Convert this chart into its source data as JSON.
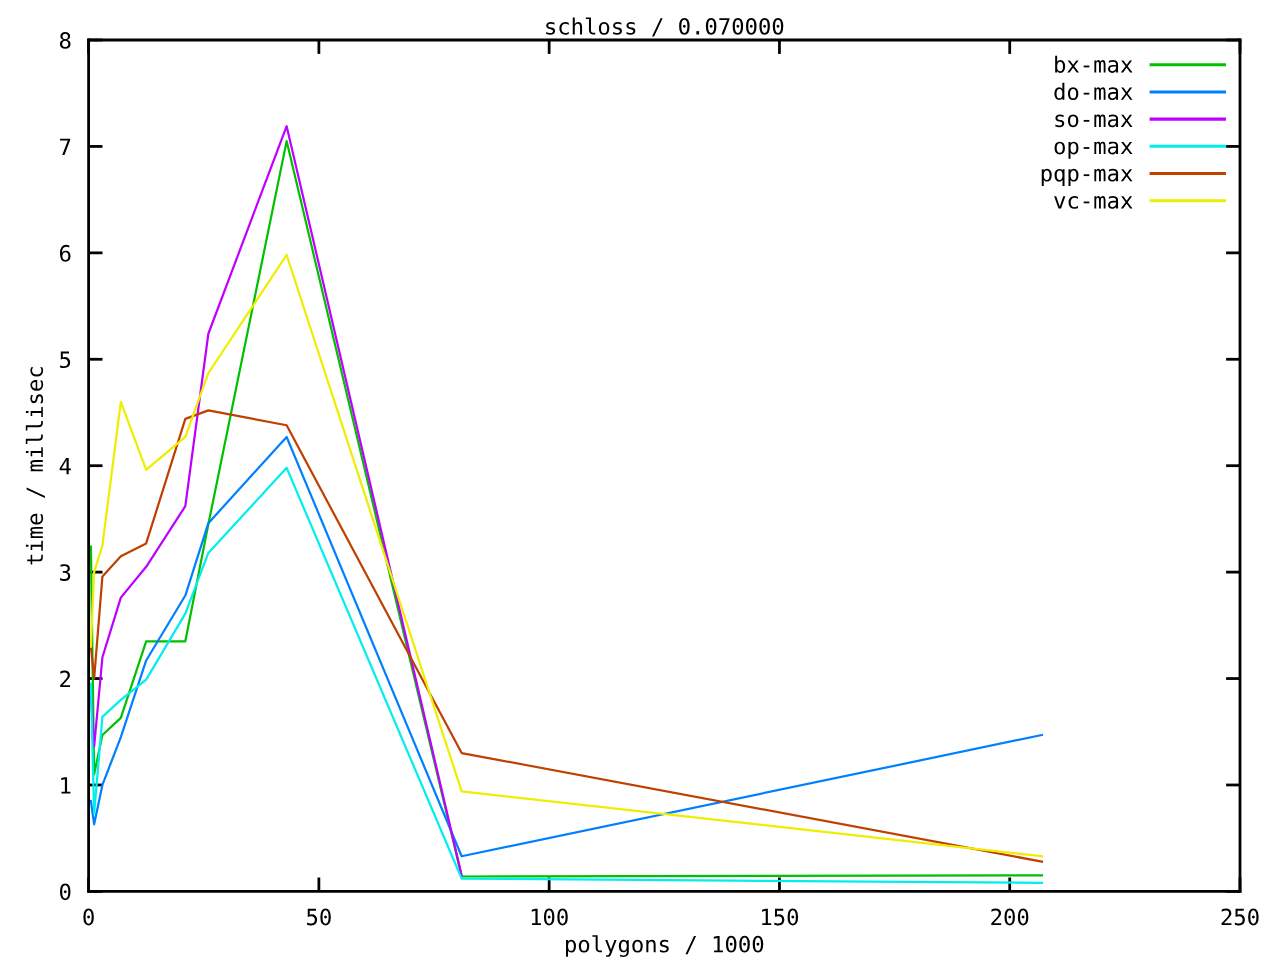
{
  "chart_data": {
    "type": "line",
    "title": "schloss / 0.070000",
    "xlabel": "polygons / 1000",
    "ylabel": "time / millisec",
    "x": [
      0.5,
      1.2,
      3,
      7,
      12.5,
      21,
      26,
      43,
      81,
      207
    ],
    "series": [
      {
        "name": "bx-max",
        "color": "#00c000",
        "values": [
          3.24,
          1.1,
          1.47,
          1.63,
          2.35,
          2.35,
          3.45,
          7.05,
          0.14,
          0.15
        ]
      },
      {
        "name": "do-max",
        "color": "#0080ff",
        "values": [
          0.85,
          0.63,
          1.0,
          1.45,
          2.17,
          2.78,
          3.46,
          4.27,
          0.33,
          1.47
        ]
      },
      {
        "name": "so-max",
        "color": "#c000ff",
        "values": [
          1.85,
          1.36,
          2.2,
          2.76,
          3.05,
          3.62,
          5.24,
          7.19,
          0.15,
          null
        ]
      },
      {
        "name": "op-max",
        "color": "#00eeee",
        "values": [
          1.95,
          0.73,
          1.64,
          1.8,
          1.99,
          2.61,
          3.18,
          3.98,
          0.12,
          0.08
        ]
      },
      {
        "name": "pqp-max",
        "color": "#c04000",
        "values": [
          2.3,
          2.0,
          2.96,
          3.15,
          3.27,
          4.44,
          4.52,
          4.38,
          1.3,
          0.28
        ]
      },
      {
        "name": "vc-max",
        "color": "#eeee00",
        "values": [
          2.3,
          3.0,
          3.25,
          4.6,
          3.96,
          4.27,
          4.87,
          5.98,
          0.94,
          0.33
        ]
      }
    ],
    "xlim": [
      0,
      250
    ],
    "ylim": [
      0,
      8
    ],
    "xticks": [
      0,
      50,
      100,
      150,
      200,
      250
    ],
    "yticks": [
      0,
      1,
      2,
      3,
      4,
      5,
      6,
      7,
      8
    ],
    "legend": "top right"
  }
}
